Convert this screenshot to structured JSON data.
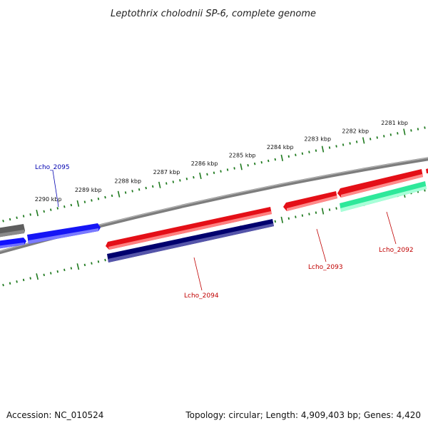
{
  "title": "Leptothrix cholodnii SP-6, complete genome",
  "footer": {
    "accession": "Accession: NC_010524",
    "summary": "Topology: circular; Length: 4,909,403 bp; Genes: 4,420"
  },
  "colors": {
    "backbone": "#808080",
    "tick": "#1f7a1f",
    "forward_gene": "#e8131b",
    "reverse_gene": "#000070",
    "blue_gene": "#1a1aff",
    "grey_gene": "#5a5a5a",
    "teal_gene": "#30e8a0",
    "label_red": "#c00000",
    "label_blue": "#0000b0"
  },
  "ticks_outer": [
    "2281 kbp",
    "2282 kbp",
    "2283 kbp",
    "2284 kbp",
    "2285 kbp",
    "2286 kbp",
    "2287 kbp",
    "2288 kbp",
    "2289 kbp",
    "2290 kbp"
  ],
  "genes": [
    {
      "name": "Lcho_2092",
      "color": "#c00000"
    },
    {
      "name": "Lcho_2093",
      "color": "#c00000"
    },
    {
      "name": "Lcho_2094",
      "color": "#c00000"
    },
    {
      "name": "Lcho_2095",
      "color": "#0000b0"
    }
  ]
}
